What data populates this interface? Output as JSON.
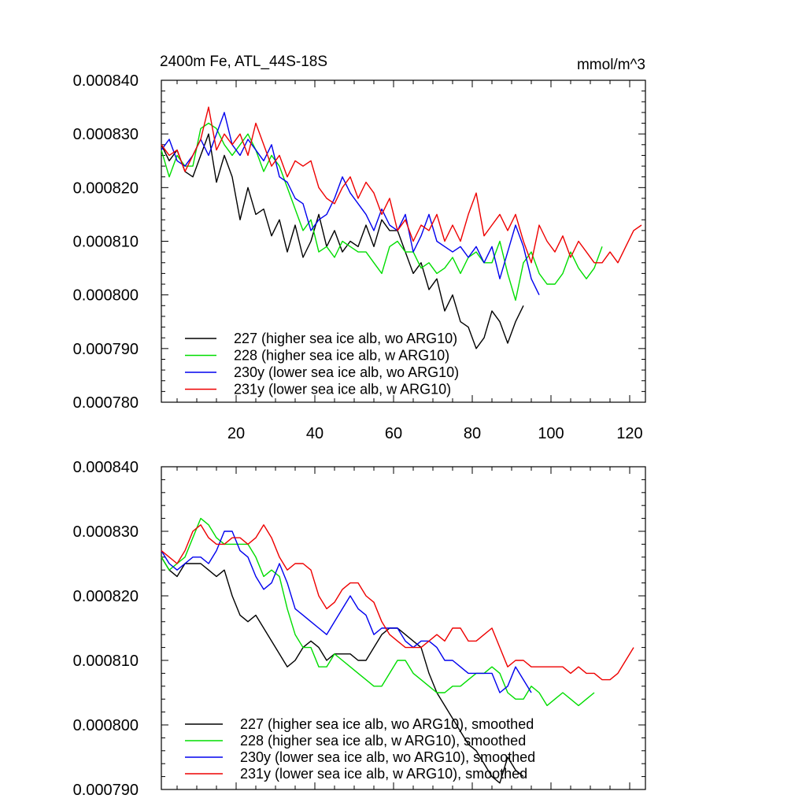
{
  "chart_data": [
    {
      "type": "line",
      "title": "2400m Fe, ATL_44S-18S",
      "units": "mmol/m^3",
      "xlabel": "",
      "ylabel": "",
      "xlim": [
        1,
        124
      ],
      "ylim": [
        0.00078,
        0.00084
      ],
      "x_ticks": [
        20,
        40,
        60,
        80,
        100,
        120
      ],
      "x_tick_labels": [
        "20",
        "40",
        "60",
        "80",
        "100",
        "120"
      ],
      "y_ticks": [
        0.00078,
        0.00079,
        0.0008,
        0.00081,
        0.00082,
        0.00083,
        0.00084
      ],
      "y_tick_labels": [
        "0.000780",
        "0.000790",
        "0.000800",
        "0.000810",
        "0.000820",
        "0.000830",
        "0.000840"
      ],
      "legend_position": "bottom-left",
      "series": [
        {
          "name": "227 (higher sea ice alb, wo ARG10)",
          "color": "#000000",
          "x": [
            1,
            3,
            5,
            7,
            9,
            11,
            13,
            15,
            17,
            19,
            21,
            23,
            25,
            27,
            29,
            31,
            33,
            35,
            37,
            39,
            41,
            43,
            45,
            47,
            49,
            51,
            53,
            55,
            57,
            59,
            61,
            63,
            65,
            67,
            69,
            71,
            73,
            75,
            77,
            79,
            81,
            83,
            85,
            87,
            89,
            91,
            93
          ],
          "y": [
            0.000828,
            0.000825,
            0.000827,
            0.000823,
            0.000822,
            0.000826,
            0.00083,
            0.000821,
            0.000826,
            0.000822,
            0.000814,
            0.00082,
            0.000815,
            0.000816,
            0.000811,
            0.000814,
            0.000808,
            0.000813,
            0.000807,
            0.00081,
            0.000815,
            0.000809,
            0.000812,
            0.000808,
            0.00081,
            0.000809,
            0.000813,
            0.000809,
            0.000814,
            0.000812,
            0.000812,
            0.000808,
            0.000804,
            0.000806,
            0.000801,
            0.000803,
            0.000797,
            0.0008,
            0.000795,
            0.000794,
            0.00079,
            0.000792,
            0.000797,
            0.000795,
            0.000791,
            0.000795,
            0.000798
          ]
        },
        {
          "name": "228 (higher sea ice alb, w ARG10)",
          "color": "#00dd00",
          "x": [
            1,
            3,
            5,
            7,
            9,
            11,
            13,
            15,
            17,
            19,
            21,
            23,
            25,
            27,
            29,
            31,
            33,
            35,
            37,
            39,
            41,
            43,
            45,
            47,
            49,
            51,
            53,
            55,
            57,
            59,
            61,
            63,
            65,
            67,
            69,
            71,
            73,
            75,
            77,
            79,
            81,
            83,
            85,
            87,
            89,
            91,
            93,
            95,
            97,
            99,
            101,
            103,
            105,
            107,
            109,
            111,
            113
          ],
          "y": [
            0.000827,
            0.000822,
            0.000826,
            0.000824,
            0.000824,
            0.000831,
            0.000832,
            0.000831,
            0.000828,
            0.000826,
            0.000828,
            0.00083,
            0.000827,
            0.000823,
            0.000826,
            0.000824,
            0.00082,
            0.000816,
            0.000812,
            0.000814,
            0.000808,
            0.000809,
            0.000807,
            0.00081,
            0.000809,
            0.000808,
            0.000808,
            0.000806,
            0.000804,
            0.000809,
            0.00081,
            0.000808,
            0.000808,
            0.000805,
            0.000806,
            0.000804,
            0.000805,
            0.000807,
            0.000804,
            0.000807,
            0.000808,
            0.000806,
            0.000806,
            0.00081,
            0.000804,
            0.000799,
            0.000806,
            0.000808,
            0.000804,
            0.000802,
            0.000802,
            0.000804,
            0.000808,
            0.000805,
            0.000803,
            0.000805,
            0.000809
          ]
        },
        {
          "name": "230y (lower sea ice alb, wo ARG10)",
          "color": "#0000ee",
          "x": [
            1,
            3,
            5,
            7,
            9,
            11,
            13,
            15,
            17,
            19,
            21,
            23,
            25,
            27,
            29,
            31,
            33,
            35,
            37,
            39,
            41,
            43,
            45,
            47,
            49,
            51,
            53,
            55,
            57,
            59,
            61,
            63,
            65,
            67,
            69,
            71,
            73,
            75,
            77,
            79,
            81,
            83,
            85,
            87,
            89,
            91,
            93,
            95,
            97
          ],
          "y": [
            0.000827,
            0.000829,
            0.000825,
            0.000824,
            0.000826,
            0.000829,
            0.000826,
            0.00083,
            0.000834,
            0.000828,
            0.000826,
            0.000829,
            0.000827,
            0.000825,
            0.000828,
            0.000822,
            0.000821,
            0.000818,
            0.000817,
            0.000812,
            0.000814,
            0.000815,
            0.000818,
            0.000822,
            0.000819,
            0.000817,
            0.000815,
            0.000812,
            0.000816,
            0.000813,
            0.000812,
            0.000815,
            0.000808,
            0.000811,
            0.000815,
            0.00081,
            0.000809,
            0.000808,
            0.000809,
            0.000807,
            0.000809,
            0.000806,
            0.000809,
            0.000803,
            0.000808,
            0.000813,
            0.000809,
            0.000803,
            0.0008
          ]
        },
        {
          "name": "231y (lower sea ice alb, w ARG10)",
          "color": "#ee0000",
          "x": [
            1,
            3,
            5,
            7,
            9,
            11,
            13,
            15,
            17,
            19,
            21,
            23,
            25,
            27,
            29,
            31,
            33,
            35,
            37,
            39,
            41,
            43,
            45,
            47,
            49,
            51,
            53,
            55,
            57,
            59,
            61,
            63,
            65,
            67,
            69,
            71,
            73,
            75,
            77,
            79,
            81,
            83,
            85,
            87,
            89,
            91,
            93,
            95,
            97,
            99,
            101,
            103,
            105,
            107,
            109,
            111,
            113,
            115,
            117,
            119,
            121,
            123
          ],
          "y": [
            0.000828,
            0.000826,
            0.000827,
            0.000823,
            0.000826,
            0.000829,
            0.000835,
            0.000827,
            0.00083,
            0.000828,
            0.00083,
            0.000826,
            0.000832,
            0.000828,
            0.000824,
            0.000826,
            0.000822,
            0.000825,
            0.000824,
            0.000825,
            0.00082,
            0.000818,
            0.000817,
            0.00082,
            0.000822,
            0.000818,
            0.000821,
            0.000819,
            0.000815,
            0.000818,
            0.000812,
            0.000814,
            0.00081,
            0.000813,
            0.000812,
            0.000815,
            0.00081,
            0.000813,
            0.00081,
            0.000815,
            0.000819,
            0.000811,
            0.000813,
            0.000815,
            0.000812,
            0.000815,
            0.00081,
            0.000806,
            0.000813,
            0.00081,
            0.000808,
            0.000811,
            0.000807,
            0.00081,
            0.000808,
            0.000806,
            0.000806,
            0.000808,
            0.000806,
            0.000809,
            0.000812,
            0.000813
          ]
        }
      ]
    },
    {
      "type": "line",
      "title": "",
      "xlabel": "",
      "ylabel": "",
      "xlim": [
        1,
        124
      ],
      "ylim": [
        0.00079,
        0.00084
      ],
      "x_ticks": [
        20,
        40,
        60,
        80,
        100,
        120
      ],
      "x_tick_labels": [],
      "y_ticks": [
        0.00079,
        0.0008,
        0.00081,
        0.00082,
        0.00083,
        0.00084
      ],
      "y_tick_labels": [
        "0.000790",
        "0.000800",
        "0.000810",
        "0.000820",
        "0.000830",
        "0.000840"
      ],
      "legend_position": "bottom-left",
      "series": [
        {
          "name": "227 (higher sea ice alb, wo ARG10), smoothed",
          "color": "#000000",
          "x": [
            1,
            3,
            5,
            7,
            9,
            11,
            13,
            15,
            17,
            19,
            21,
            23,
            25,
            27,
            29,
            31,
            33,
            35,
            37,
            39,
            41,
            43,
            45,
            47,
            49,
            51,
            53,
            55,
            57,
            59,
            61,
            63,
            65,
            67,
            69,
            71,
            73,
            75,
            77,
            79,
            81,
            83,
            85,
            87,
            89,
            91,
            93
          ],
          "y": [
            0.000826,
            0.000824,
            0.000823,
            0.000825,
            0.000825,
            0.000825,
            0.000824,
            0.000823,
            0.000824,
            0.00082,
            0.000817,
            0.000816,
            0.000817,
            0.000815,
            0.000813,
            0.000811,
            0.000809,
            0.00081,
            0.000812,
            0.000813,
            0.000812,
            0.00081,
            0.000811,
            0.000811,
            0.000811,
            0.00081,
            0.00081,
            0.000812,
            0.000814,
            0.000815,
            0.000815,
            0.000814,
            0.000813,
            0.000812,
            0.000808,
            0.000805,
            0.000803,
            0.000801,
            0.000799,
            0.000797,
            0.000796,
            0.000794,
            0.000792,
            0.000791,
            0.000795,
            0.000793,
            0.000792
          ]
        },
        {
          "name": "228 (higher sea ice alb, w ARG10), smoothed",
          "color": "#00dd00",
          "x": [
            1,
            3,
            5,
            7,
            9,
            11,
            13,
            15,
            17,
            19,
            21,
            23,
            25,
            27,
            29,
            31,
            33,
            35,
            37,
            39,
            41,
            43,
            45,
            47,
            49,
            51,
            53,
            55,
            57,
            59,
            61,
            63,
            65,
            67,
            69,
            71,
            73,
            75,
            77,
            79,
            81,
            83,
            85,
            87,
            89,
            91,
            93,
            95,
            97,
            99,
            101,
            103,
            105,
            107,
            109,
            111
          ],
          "y": [
            0.000826,
            0.000824,
            0.000825,
            0.000826,
            0.000829,
            0.000832,
            0.000831,
            0.000829,
            0.000828,
            0.000828,
            0.000828,
            0.000828,
            0.000826,
            0.000823,
            0.000824,
            0.000823,
            0.000818,
            0.000814,
            0.000812,
            0.000812,
            0.000809,
            0.000809,
            0.000811,
            0.00081,
            0.000809,
            0.000808,
            0.000807,
            0.000806,
            0.000806,
            0.000808,
            0.00081,
            0.00081,
            0.000808,
            0.000807,
            0.000806,
            0.000805,
            0.000805,
            0.000806,
            0.000806,
            0.000807,
            0.000808,
            0.000808,
            0.000809,
            0.000808,
            0.000805,
            0.000804,
            0.000804,
            0.000806,
            0.000805,
            0.000803,
            0.000804,
            0.000805,
            0.000804,
            0.000803,
            0.000804,
            0.000805
          ]
        },
        {
          "name": "230y (lower sea ice alb, wo ARG10), smoothed",
          "color": "#0000ee",
          "x": [
            1,
            3,
            5,
            7,
            9,
            11,
            13,
            15,
            17,
            19,
            21,
            23,
            25,
            27,
            29,
            31,
            33,
            35,
            37,
            39,
            41,
            43,
            45,
            47,
            49,
            51,
            53,
            55,
            57,
            59,
            61,
            63,
            65,
            67,
            69,
            71,
            73,
            75,
            77,
            79,
            81,
            83,
            85,
            87,
            89,
            91,
            93,
            95
          ],
          "y": [
            0.000827,
            0.000825,
            0.000824,
            0.000825,
            0.000826,
            0.000826,
            0.000825,
            0.000827,
            0.00083,
            0.00083,
            0.000827,
            0.000826,
            0.000823,
            0.000821,
            0.000822,
            0.000825,
            0.000822,
            0.000818,
            0.000817,
            0.000816,
            0.000815,
            0.000814,
            0.000816,
            0.000818,
            0.00082,
            0.000818,
            0.000817,
            0.000814,
            0.000815,
            0.000815,
            0.000815,
            0.000813,
            0.000812,
            0.000813,
            0.000813,
            0.000812,
            0.00081,
            0.00081,
            0.000809,
            0.000808,
            0.000808,
            0.000808,
            0.000808,
            0.000805,
            0.000806,
            0.000809,
            0.000807,
            0.000805
          ]
        },
        {
          "name": "231y (lower sea ice alb, w ARG10), smoothed",
          "color": "#ee0000",
          "x": [
            1,
            3,
            5,
            7,
            9,
            11,
            13,
            15,
            17,
            19,
            21,
            23,
            25,
            27,
            29,
            31,
            33,
            35,
            37,
            39,
            41,
            43,
            45,
            47,
            49,
            51,
            53,
            55,
            57,
            59,
            61,
            63,
            65,
            67,
            69,
            71,
            73,
            75,
            77,
            79,
            81,
            83,
            85,
            87,
            89,
            91,
            93,
            95,
            97,
            99,
            101,
            103,
            105,
            107,
            109,
            111,
            113,
            115,
            117,
            119,
            121
          ],
          "y": [
            0.000827,
            0.000826,
            0.000825,
            0.000827,
            0.00083,
            0.000831,
            0.000829,
            0.000828,
            0.000828,
            0.000829,
            0.000829,
            0.000828,
            0.000829,
            0.000831,
            0.000829,
            0.000826,
            0.000824,
            0.000825,
            0.000825,
            0.000824,
            0.00082,
            0.000818,
            0.000819,
            0.000821,
            0.000822,
            0.000822,
            0.00082,
            0.000819,
            0.000816,
            0.000814,
            0.000813,
            0.000812,
            0.000812,
            0.000812,
            0.000813,
            0.000814,
            0.000813,
            0.000815,
            0.000815,
            0.000813,
            0.000813,
            0.000814,
            0.000815,
            0.000812,
            0.000809,
            0.00081,
            0.00081,
            0.000809,
            0.000809,
            0.000809,
            0.000809,
            0.000809,
            0.000808,
            0.000809,
            0.000808,
            0.000808,
            0.000807,
            0.000807,
            0.000808,
            0.00081,
            0.000812
          ]
        }
      ]
    }
  ]
}
